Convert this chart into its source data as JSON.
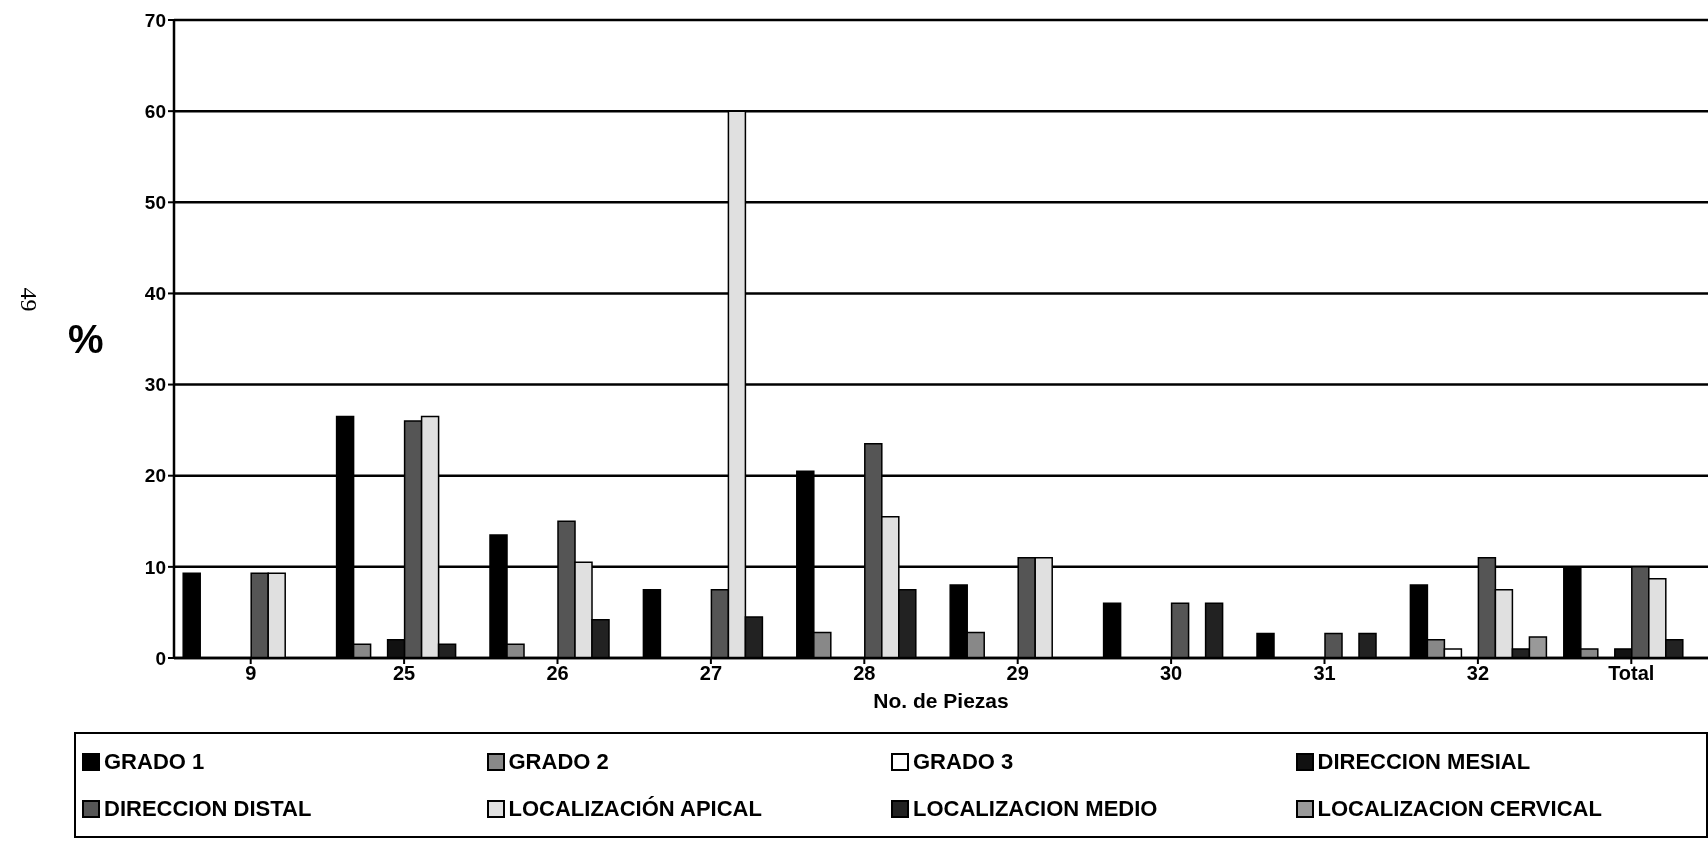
{
  "chart_data": {
    "type": "bar",
    "xlabel": "No. de Piezas",
    "ylabel": "%",
    "annotations": [
      "49"
    ],
    "categories": [
      "9",
      "25",
      "26",
      "27",
      "28",
      "29",
      "30",
      "31",
      "32",
      "Total"
    ],
    "ylim": [
      0,
      70
    ],
    "yticks": [
      0,
      10,
      20,
      30,
      40,
      50,
      60,
      70
    ],
    "grid": "y",
    "legend": "bottom",
    "series": [
      {
        "name": "GRADO 1",
        "color": "#000000",
        "values": [
          9.3,
          26.5,
          13.5,
          7.5,
          20.5,
          8,
          6,
          2.7,
          8,
          10
        ]
      },
      {
        "name": "GRADO 2",
        "color": "#888888",
        "values": [
          0,
          1.5,
          1.5,
          0,
          2.8,
          2.8,
          0,
          0,
          2,
          1
        ]
      },
      {
        "name": "GRADO 3",
        "color": "#ffffff",
        "values": [
          0,
          0,
          0,
          0,
          0,
          0,
          0,
          0,
          1,
          0
        ]
      },
      {
        "name": "DIRECCION MESIAL",
        "color": "#111111",
        "values": [
          0,
          2,
          0,
          0,
          0,
          0,
          0,
          0,
          0,
          1
        ]
      },
      {
        "name": "DIRECCION DISTAL",
        "color": "#555555",
        "values": [
          9.3,
          26,
          15,
          7.5,
          23.5,
          11,
          6,
          2.7,
          11,
          10
        ]
      },
      {
        "name": "LOCALIZACIÓN APICAL",
        "color": "#e0e0e0",
        "values": [
          9.3,
          26.5,
          10.5,
          60,
          15.5,
          11,
          0,
          0,
          7.5,
          8.7
        ]
      },
      {
        "name": "LOCALIZACION MEDIO",
        "color": "#222222",
        "values": [
          0,
          1.5,
          4.2,
          4.5,
          7.5,
          0,
          6,
          2.7,
          1,
          2
        ]
      },
      {
        "name": "LOCALIZACION CERVICAL",
        "color": "#999999",
        "values": [
          0,
          0,
          0,
          0,
          0,
          0,
          0,
          0,
          2.3,
          0
        ]
      }
    ]
  }
}
